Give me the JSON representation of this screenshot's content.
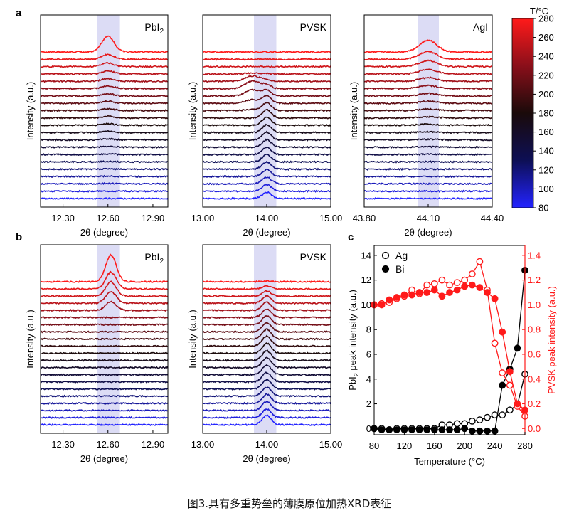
{
  "caption": "图3.具有多重势垒的薄膜原位加热XRD表征",
  "panel_labels": {
    "a": "a",
    "b": "b",
    "c": "c"
  },
  "colorbar": {
    "title": "T/°C",
    "ticks": [
      80,
      100,
      120,
      140,
      160,
      180,
      200,
      220,
      240,
      260,
      280
    ],
    "stops": [
      "#2323ff",
      "#0d0f55",
      "#1a0a0a",
      "#8a0f1a",
      "#ff1a1a"
    ]
  },
  "chart_data": [
    {
      "id": "a1",
      "type": "line",
      "title": "PbI2",
      "title_main": "PbI",
      "title_sub": "2",
      "xlabel": "2θ (degree)",
      "ylabel": "Intensity (a.u.)",
      "xlim": [
        12.15,
        13.0
      ],
      "xticks": [
        12.3,
        12.6,
        12.9
      ],
      "xtick_labels": [
        "12.30",
        "12.60",
        "12.90"
      ],
      "highlight": [
        12.53,
        12.68
      ],
      "peak_center": 12.6,
      "peak_width": 0.04,
      "n_traces": 21,
      "peak_amplitudes": [
        0,
        0,
        0.1,
        0.1,
        0.1,
        0.15,
        0.2,
        0.25,
        0.3,
        0.35,
        0.4,
        0.45,
        0.5,
        0.55,
        0.6,
        0.7,
        0.75,
        0.85,
        1.0,
        1.3,
        4.5
      ]
    },
    {
      "id": "a2",
      "type": "line",
      "title": "PVSK",
      "xlabel": "2θ (degree)",
      "ylabel": "Intensity (a.u.)",
      "xlim": [
        13.0,
        15.0
      ],
      "xticks": [
        13.0,
        14.0,
        15.0
      ],
      "xtick_labels": [
        "13.00",
        "14.00",
        "15.00"
      ],
      "highlight": [
        13.8,
        14.15
      ],
      "peak_center": 14.0,
      "peak_width": 0.07,
      "n_traces": 21,
      "peak_amplitudes": [
        1.8,
        1.8,
        1.9,
        1.9,
        2.0,
        2.0,
        2.0,
        2.1,
        2.2,
        2.2,
        2.3,
        2.3,
        2.2,
        2.0,
        1.5,
        1.0,
        0.4,
        0.1,
        0,
        0,
        0
      ],
      "shoulder": {
        "center": 13.78,
        "width": 0.11,
        "amplitudes": [
          0,
          0,
          0,
          0,
          0,
          0,
          0,
          0,
          0,
          0,
          0,
          0,
          0.3,
          1.0,
          1.7,
          2.2,
          1.5,
          0.2,
          0,
          0,
          0
        ]
      }
    },
    {
      "id": "a3",
      "type": "line",
      "title": "AgI",
      "xlabel": "2θ (degree)",
      "ylabel": "Intensity (a.u.)",
      "xlim": [
        43.8,
        44.4
      ],
      "xticks": [
        43.8,
        44.1,
        44.4
      ],
      "xtick_labels": [
        "43.80",
        "44.10",
        "44.40"
      ],
      "highlight": [
        44.05,
        44.15
      ],
      "peak_center": 44.1,
      "peak_width": 0.04,
      "n_traces": 21,
      "peak_amplitudes": [
        0,
        0,
        0,
        0,
        0,
        0.05,
        0.1,
        0.15,
        0.2,
        0.25,
        0.3,
        0.35,
        0.45,
        0.55,
        0.7,
        0.85,
        1.0,
        1.3,
        1.7,
        2.2,
        3.3
      ]
    },
    {
      "id": "b1",
      "type": "line",
      "title": "PbI2",
      "title_main": "PbI",
      "title_sub": "2",
      "xlabel": "2θ (degree)",
      "ylabel": "Intensity (a.u.)",
      "xlim": [
        12.15,
        13.0
      ],
      "xticks": [
        12.3,
        12.6,
        12.9
      ],
      "xtick_labels": [
        "12.30",
        "12.60",
        "12.90"
      ],
      "highlight": [
        12.53,
        12.68
      ],
      "peak_center": 12.62,
      "peak_width": 0.035,
      "n_traces": 21,
      "peak_amplitudes": [
        0,
        0,
        0,
        0,
        0,
        0,
        0,
        0,
        0,
        0,
        0,
        0,
        0,
        0,
        0,
        0,
        2.5,
        3.3,
        4.0,
        4.7,
        7.5
      ]
    },
    {
      "id": "b2",
      "type": "line",
      "title": "PVSK",
      "xlabel": "2θ (degree)",
      "ylabel": "Intensity (a.u.)",
      "xlim": [
        13.0,
        15.0
      ],
      "xticks": [
        13.0,
        14.0,
        15.0
      ],
      "xtick_labels": [
        "13.00",
        "14.00",
        "15.00"
      ],
      "highlight": [
        13.8,
        14.15
      ],
      "peak_center": 14.0,
      "peak_width": 0.07,
      "n_traces": 21,
      "peak_amplitudes": [
        2.6,
        2.4,
        2.5,
        2.5,
        2.5,
        2.6,
        2.6,
        2.7,
        2.7,
        2.7,
        2.8,
        2.8,
        2.7,
        2.6,
        2.5,
        2.4,
        2.3,
        2.0,
        1.4,
        0.8,
        0.2
      ]
    },
    {
      "id": "c",
      "type": "line",
      "xlabel": "Temperature (°C)",
      "ylabel_left_main": "PbI",
      "ylabel_left_sub": "2",
      "ylabel_left_rest": " peak intensity (a.u.)",
      "ylabel_right": "PVSK peak intensity (a.u.)",
      "xlim": [
        80,
        280
      ],
      "xticks": [
        80,
        120,
        160,
        200,
        240,
        280
      ],
      "ylim_left": [
        -0.5,
        14.8
      ],
      "yticks_left": [
        0,
        2,
        4,
        6,
        8,
        10,
        12,
        14
      ],
      "ylim_right": [
        -0.05,
        1.48
      ],
      "yticks_right": [
        0.0,
        0.2,
        0.4,
        0.6,
        0.8,
        1.0,
        1.2,
        1.4
      ],
      "ytick_right_labels": [
        "0.0",
        "0.2",
        "0.4",
        "0.6",
        "0.8",
        "1.0",
        "1.2",
        "1.4"
      ],
      "legend": [
        {
          "label": "Ag",
          "marker": "open"
        },
        {
          "label": "Bi",
          "marker": "filled"
        }
      ],
      "legend_position": "top-left",
      "series": [
        {
          "name": "Ag PbI2",
          "axis": "left",
          "marker": "open",
          "color": "#000000",
          "x": [
            80,
            90,
            100,
            110,
            120,
            130,
            140,
            150,
            160,
            170,
            180,
            190,
            200,
            210,
            220,
            230,
            240,
            250,
            260,
            270,
            280
          ],
          "y": [
            0.0,
            0.0,
            -0.1,
            0.0,
            0.0,
            0.0,
            0.0,
            0.0,
            0.0,
            0.3,
            0.3,
            0.4,
            0.4,
            0.6,
            0.7,
            0.9,
            1.1,
            1.1,
            1.5,
            1.9,
            4.4
          ]
        },
        {
          "name": "Bi PbI2",
          "axis": "left",
          "marker": "filled",
          "color": "#000000",
          "x": [
            80,
            90,
            100,
            110,
            120,
            130,
            140,
            150,
            160,
            170,
            180,
            190,
            200,
            210,
            220,
            230,
            240,
            250,
            260,
            270,
            280
          ],
          "y": [
            0.0,
            -0.1,
            -0.1,
            -0.1,
            -0.1,
            -0.1,
            -0.1,
            -0.1,
            -0.1,
            -0.1,
            -0.1,
            -0.1,
            0.0,
            -0.2,
            -0.2,
            -0.2,
            -0.2,
            3.5,
            4.8,
            6.5,
            12.8
          ]
        },
        {
          "name": "Ag PVSK",
          "axis": "right",
          "marker": "open",
          "color": "#ff1a1a",
          "x": [
            80,
            90,
            100,
            110,
            120,
            130,
            140,
            150,
            160,
            170,
            180,
            190,
            200,
            210,
            220,
            230,
            240,
            250,
            260,
            270,
            280
          ],
          "y": [
            1.0,
            1.01,
            1.02,
            1.05,
            1.07,
            1.12,
            1.09,
            1.16,
            1.17,
            1.2,
            1.16,
            1.18,
            1.2,
            1.25,
            1.35,
            1.12,
            0.69,
            0.45,
            0.35,
            0.18,
            0.1
          ]
        },
        {
          "name": "Bi PVSK",
          "axis": "right",
          "marker": "filled",
          "color": "#ff1a1a",
          "x": [
            80,
            90,
            100,
            110,
            120,
            130,
            140,
            150,
            160,
            170,
            180,
            190,
            200,
            210,
            220,
            230,
            240,
            250,
            260,
            270,
            280
          ],
          "y": [
            1.0,
            1.0,
            1.04,
            1.06,
            1.08,
            1.08,
            1.1,
            1.1,
            1.12,
            1.07,
            1.1,
            1.12,
            1.15,
            1.16,
            1.14,
            1.1,
            1.05,
            0.78,
            0.46,
            0.2,
            0.15
          ]
        }
      ]
    }
  ]
}
